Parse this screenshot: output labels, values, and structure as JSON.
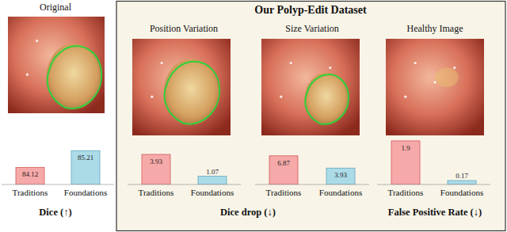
{
  "box_title": "Our Polyp-Edit Dataset",
  "chart_data": [
    {
      "type": "bar",
      "title": "Original",
      "x_label": "Dice (↑)",
      "categories": [
        "Traditions",
        "Foundations"
      ],
      "values": [
        84.12,
        85.21
      ],
      "colors": [
        "#f6a9a9",
        "#acdbe8"
      ],
      "ylim": [
        83,
        86
      ],
      "data_labels": true,
      "tick_labels": "x"
    },
    {
      "type": "bar",
      "title": "Position Variation",
      "x_label": "Dice drop (↓)",
      "categories": [
        "Traditions",
        "Foundations"
      ],
      "values": [
        3.93,
        1.07
      ],
      "colors": [
        "#f6a9a9",
        "#acdbe8"
      ],
      "ylim": [
        0,
        6
      ],
      "data_labels": true,
      "tick_labels": "x"
    },
    {
      "type": "bar",
      "title": "Size Variation",
      "categories": [
        "Traditions",
        "Foundations"
      ],
      "values": [
        6.87,
        3.93
      ],
      "colors": [
        "#f6a9a9",
        "#acdbe8"
      ],
      "ylim": [
        0,
        11
      ],
      "data_labels": true,
      "tick_labels": "x"
    },
    {
      "type": "bar",
      "title": "Healthy Image",
      "x_label": "False Positive Rate (↓)",
      "categories": [
        "Traditions",
        "Foundations"
      ],
      "values": [
        1.9,
        0.17
      ],
      "colors": [
        "#f6a9a9",
        "#acdbe8"
      ],
      "ylim": [
        0,
        2
      ],
      "data_labels": true,
      "tick_labels": "x"
    }
  ]
}
